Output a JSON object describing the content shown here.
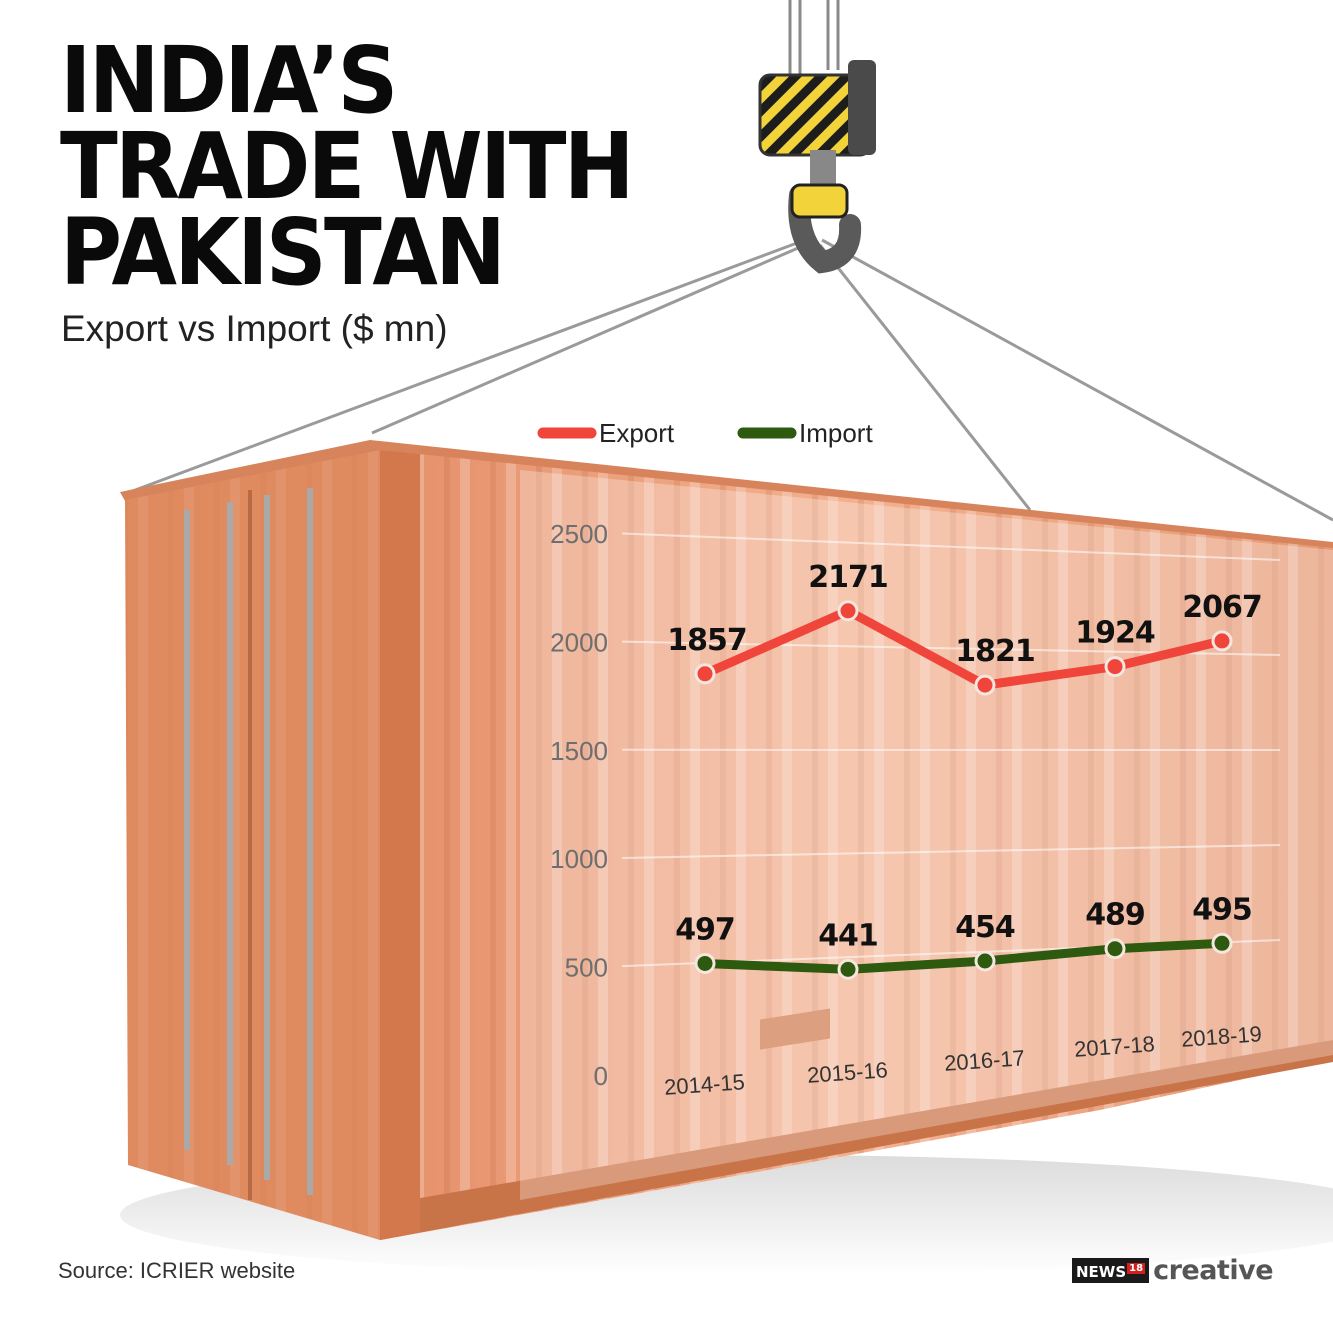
{
  "header": {
    "title_lines": [
      "INDIA’S",
      "TRADE WITH",
      "PAKISTAN"
    ],
    "subtitle": "Export vs Import ($ mn)"
  },
  "footer": {
    "source": "Source: ICRIER website",
    "brand_news": "NEWS",
    "brand_num": "18",
    "brand_creative": "creative"
  },
  "colors": {
    "export": "#f0453a",
    "import": "#2d5a0e",
    "container": "#e8916a",
    "container_dark": "#c86a42"
  },
  "icons": [
    "crane-hook-icon",
    "shipping-container-icon"
  ],
  "chart_data": {
    "type": "line",
    "categories": [
      "2014-15",
      "2015-16",
      "2016-17",
      "2017-18",
      "2018-19"
    ],
    "series": [
      {
        "name": "Export",
        "values": [
          1857,
          2171,
          1821,
          1924,
          2067
        ]
      },
      {
        "name": "Import",
        "values": [
          497,
          441,
          454,
          489,
          495
        ]
      }
    ],
    "yticks": [
      0,
      500,
      1000,
      1500,
      2000,
      2500
    ],
    "ylim": [
      0,
      2500
    ],
    "grid": true,
    "legend": "top"
  }
}
